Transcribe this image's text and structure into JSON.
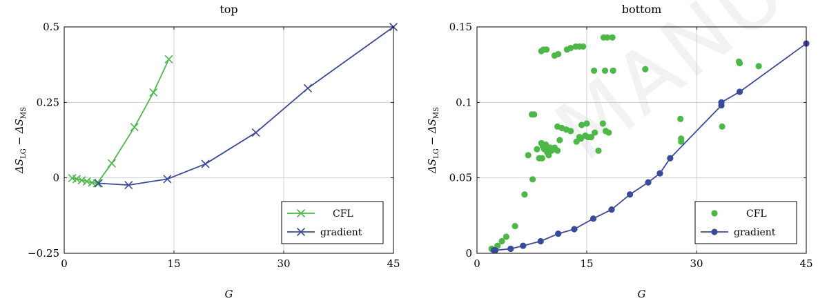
{
  "watermark": "MANUSCRIPT",
  "colors": {
    "cfl": "#4cb848",
    "gradient": "#3a4a9a",
    "grid": "#d0d0d0",
    "axis": "#000000"
  },
  "chart_data": [
    {
      "type": "line",
      "title": "top",
      "xlabel": "G",
      "ylabel": "ΔS_LG − ΔS_MS",
      "xlim": [
        0,
        45
      ],
      "ylim": [
        -0.25,
        0.5
      ],
      "xticks": [
        0,
        15,
        30,
        45
      ],
      "yticks": [
        -0.25,
        0,
        0.25,
        0.5
      ],
      "xtick_labels": [
        "0",
        "15",
        "30",
        "45"
      ],
      "ytick_labels": [
        "−0.25",
        "0",
        "0.25",
        "0.5"
      ],
      "grid": true,
      "legend": "bottom-right",
      "marker": "x",
      "series": [
        {
          "name": "CFL",
          "x": [
            1.1,
            1.7,
            2.4,
            3.1,
            3.8,
            4.5,
            6.5,
            9.6,
            12.2,
            14.3
          ],
          "y": [
            -0.001,
            -0.004,
            -0.008,
            -0.012,
            -0.016,
            -0.018,
            0.048,
            0.168,
            0.283,
            0.393
          ]
        },
        {
          "name": "gradient",
          "x": [
            4.7,
            8.8,
            14.1,
            19.3,
            26.2,
            33.3,
            45.0
          ],
          "y": [
            -0.018,
            -0.024,
            -0.004,
            0.046,
            0.15,
            0.297,
            0.5
          ]
        }
      ]
    },
    {
      "type": "scatter",
      "title": "bottom",
      "xlabel": "G",
      "ylabel": "ΔS_LG − ΔS_MS",
      "xlim": [
        0,
        45
      ],
      "ylim": [
        0,
        0.15
      ],
      "xticks": [
        0,
        15,
        30,
        45
      ],
      "yticks": [
        0,
        0.05,
        0.1,
        0.15
      ],
      "xtick_labels": [
        "0",
        "15",
        "30",
        "45"
      ],
      "ytick_labels": [
        "0",
        "0.05",
        "0.1",
        "0.15"
      ],
      "grid": true,
      "legend": "bottom-right",
      "marker": "circle",
      "series": [
        {
          "name": "CFL",
          "style": "points",
          "x": [
            2.0,
            2.8,
            3.4,
            4.0,
            5.2,
            6.5,
            7.0,
            7.5,
            7.8,
            7.6,
            8.2,
            8.5,
            8.8,
            9.0,
            9.4,
            9.8,
            10.2,
            10.0,
            8.9,
            9.2,
            9.6,
            10.6,
            11.0,
            11.3,
            11.0,
            11.6,
            12.2,
            12.8,
            13.6,
            14.2,
            14.0,
            14.3,
            14.8,
            15.2,
            15.6,
            16.1,
            15.0,
            16.6,
            17.2,
            17.6,
            18.0,
            8.8,
            9.1,
            9.5,
            10.6,
            11.1,
            12.3,
            12.8,
            13.5,
            14.0,
            14.5,
            17.3,
            17.8,
            18.5,
            16.0,
            17.5,
            18.6,
            23.0,
            27.8,
            27.9,
            33.5,
            35.9,
            38.5,
            35.8,
            27.9
          ],
          "y": [
            0.003,
            0.005,
            0.008,
            0.011,
            0.018,
            0.039,
            0.065,
            0.092,
            0.092,
            0.049,
            0.069,
            0.063,
            0.073,
            0.071,
            0.072,
            0.065,
            0.068,
            0.07,
            0.063,
            0.069,
            0.067,
            0.07,
            0.068,
            0.075,
            0.084,
            0.083,
            0.082,
            0.081,
            0.074,
            0.076,
            0.077,
            0.085,
            0.078,
            0.077,
            0.077,
            0.08,
            0.086,
            0.068,
            0.086,
            0.081,
            0.08,
            0.134,
            0.135,
            0.135,
            0.131,
            0.132,
            0.135,
            0.136,
            0.137,
            0.137,
            0.137,
            0.143,
            0.143,
            0.143,
            0.121,
            0.121,
            0.121,
            0.122,
            0.089,
            0.076,
            0.084,
            0.126,
            0.124,
            0.127,
            0.074
          ]
        },
        {
          "name": "gradient",
          "style": "line-markers",
          "x": [
            2.3,
            2.5,
            4.6,
            6.3,
            8.7,
            11.1,
            13.3,
            15.9,
            18.4,
            20.9,
            23.4,
            25.0,
            26.4,
            33.4,
            33.4,
            35.9,
            45.0
          ],
          "y": [
            0.002,
            0.002,
            0.003,
            0.005,
            0.008,
            0.013,
            0.016,
            0.023,
            0.029,
            0.039,
            0.047,
            0.053,
            0.063,
            0.098,
            0.1,
            0.107,
            0.139
          ]
        }
      ]
    }
  ]
}
